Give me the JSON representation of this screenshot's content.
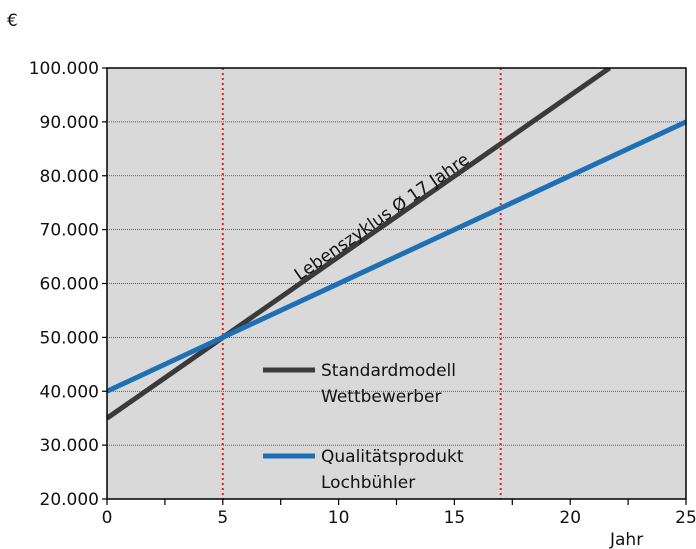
{
  "chart_data": {
    "type": "line",
    "ylabel": "€",
    "xlabel": "Jahr",
    "xlim": [
      0,
      25
    ],
    "ylim": [
      20000,
      100000
    ],
    "x_ticks": [
      0,
      5,
      10,
      15,
      20,
      25
    ],
    "x_tick_labels": [
      "0",
      "5",
      "10",
      "15",
      "20",
      "25"
    ],
    "y_ticks": [
      20000,
      30000,
      40000,
      50000,
      60000,
      70000,
      80000,
      90000,
      100000
    ],
    "y_tick_labels": [
      "20.000",
      "30.000",
      "40.000",
      "50.000",
      "60.000",
      "70.000",
      "80.000",
      "90.000",
      "100.000"
    ],
    "grid": "horizontal dotted",
    "plot_background": "#d9d9d9",
    "series": [
      {
        "name_lines": [
          "Standardmodell",
          "Wettbewerber"
        ],
        "color": "#3a3a3a",
        "x": [
          0,
          21.7
        ],
        "y": [
          35000,
          100000
        ]
      },
      {
        "name_lines": [
          "Qualitätsprodukt",
          "Lochbühler"
        ],
        "color": "#1f6fb5",
        "x": [
          0,
          25
        ],
        "y": [
          40000,
          90000
        ]
      }
    ],
    "reference_lines": [
      {
        "x": 5,
        "color": "#e8231f",
        "style": "dotted"
      },
      {
        "x": 17,
        "color": "#e8231f",
        "style": "dotted"
      }
    ],
    "annotations": [
      {
        "text": "Lebenszyklus Ø 17 Jahre",
        "x": 12,
        "y": 71500
      }
    ],
    "legend_placement": "center-bottom inside plot"
  }
}
